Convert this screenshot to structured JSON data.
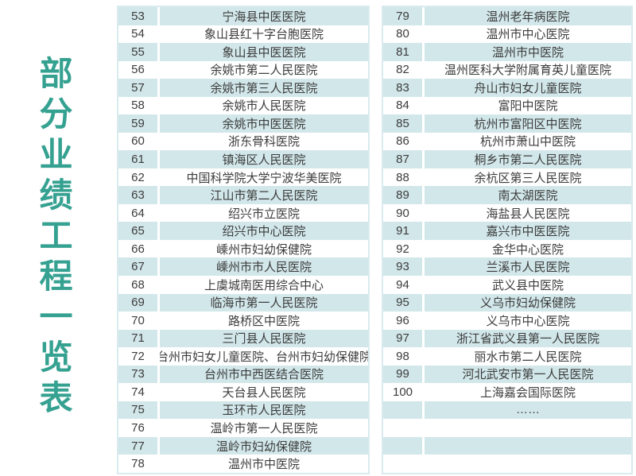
{
  "title": {
    "text": "部分业绩工程一览表"
  },
  "colors": {
    "accent": "#35a191",
    "row_shade": "#d2e7ea",
    "table_border": "#d9ebee",
    "text": "#3c3c3c"
  },
  "left_table": {
    "rows": [
      {
        "num": "53",
        "name": "宁海县中医医院"
      },
      {
        "num": "54",
        "name": "象山县红十字台胞医院"
      },
      {
        "num": "55",
        "name": "象山县中医医院"
      },
      {
        "num": "56",
        "name": "余姚市第二人民医院"
      },
      {
        "num": "57",
        "name": "余姚市第三人民医院"
      },
      {
        "num": "58",
        "name": "余姚市人民医院"
      },
      {
        "num": "59",
        "name": "余姚市中医医院"
      },
      {
        "num": "60",
        "name": "浙东骨科医院"
      },
      {
        "num": "61",
        "name": "镇海区人民医院"
      },
      {
        "num": "62",
        "name": "中国科学院大学宁波华美医院"
      },
      {
        "num": "63",
        "name": "江山市第二人民医院"
      },
      {
        "num": "64",
        "name": "绍兴市立医院"
      },
      {
        "num": "65",
        "name": "绍兴市中心医院"
      },
      {
        "num": "66",
        "name": "嵊州市妇幼保健院"
      },
      {
        "num": "67",
        "name": "嵊州市市人民医院"
      },
      {
        "num": "68",
        "name": "上虞城南医用综合中心"
      },
      {
        "num": "69",
        "name": "临海市第一人民医院"
      },
      {
        "num": "70",
        "name": "路桥区中医院"
      },
      {
        "num": "71",
        "name": "三门县人民医院"
      },
      {
        "num": "72",
        "name": "台州市妇女儿童医院、台州市妇幼保健院"
      },
      {
        "num": "73",
        "name": "台州市中西医结合医院"
      },
      {
        "num": "74",
        "name": "天台县人民医院"
      },
      {
        "num": "75",
        "name": "玉环市人民医院"
      },
      {
        "num": "76",
        "name": "温岭市第一人民医院"
      },
      {
        "num": "77",
        "name": "温岭市妇幼保健院"
      },
      {
        "num": "78",
        "name": "温州市中医院"
      }
    ]
  },
  "right_table": {
    "rows": [
      {
        "num": "79",
        "name": "温州老年病医院"
      },
      {
        "num": "80",
        "name": "温州市中心医院"
      },
      {
        "num": "81",
        "name": "温州市中医院"
      },
      {
        "num": "82",
        "name": "温州医科大学附属育英儿童医院"
      },
      {
        "num": "83",
        "name": "舟山市妇女儿童医院"
      },
      {
        "num": "84",
        "name": "富阳中医院"
      },
      {
        "num": "85",
        "name": "杭州市富阳区中医院"
      },
      {
        "num": "86",
        "name": "杭州市萧山中医院"
      },
      {
        "num": "87",
        "name": "桐乡市第二人民医院"
      },
      {
        "num": "88",
        "name": "余杭区第三人民医院"
      },
      {
        "num": "89",
        "name": "南太湖医院"
      },
      {
        "num": "90",
        "name": "海盐县人民医院"
      },
      {
        "num": "91",
        "name": "嘉兴市中医医院"
      },
      {
        "num": "92",
        "name": "金华中心医院"
      },
      {
        "num": "93",
        "name": "兰溪市人民医院"
      },
      {
        "num": "94",
        "name": "武义县中医院"
      },
      {
        "num": "95",
        "name": "义乌市妇幼保健院"
      },
      {
        "num": "96",
        "name": "义乌市中心医院"
      },
      {
        "num": "97",
        "name": "浙江省武义县第一人民医院"
      },
      {
        "num": "98",
        "name": "丽水市第二人民医院"
      },
      {
        "num": "99",
        "name": "河北武安市第一人民医院"
      },
      {
        "num": "100",
        "name": "上海嘉会国际医院"
      },
      {
        "num": "",
        "name": "……"
      },
      {
        "num": "",
        "name": ""
      },
      {
        "num": "",
        "name": ""
      },
      {
        "num": "",
        "name": ""
      }
    ]
  }
}
